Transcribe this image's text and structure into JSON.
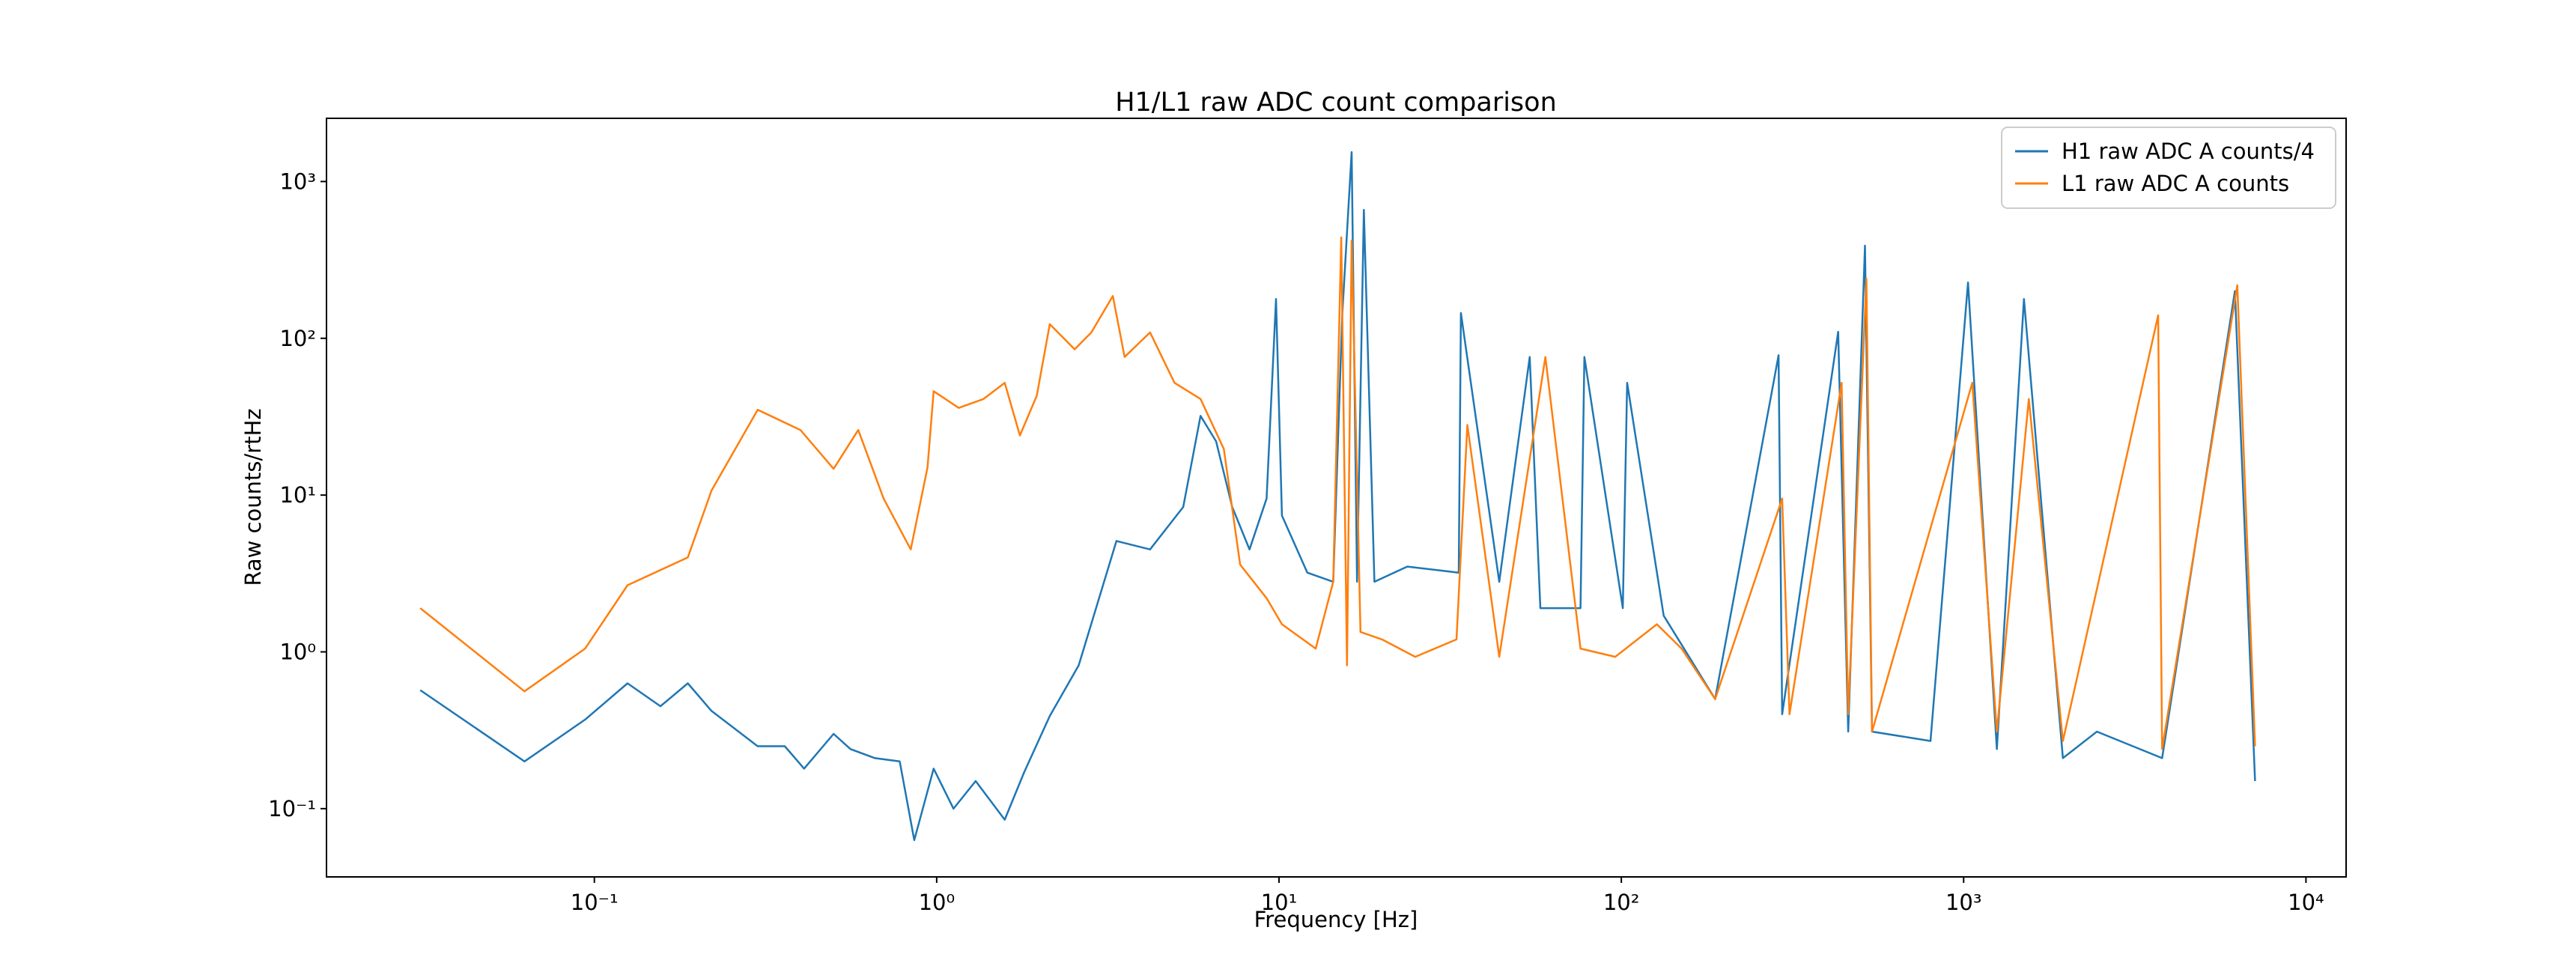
{
  "chart_data": {
    "type": "line",
    "title": "H1/L1 raw ADC count comparison",
    "x_label": "Frequency [Hz]",
    "y_label": "Raw counts/rtHz",
    "xscale": "log",
    "yscale": "log",
    "grid": false,
    "legend": "upper right",
    "xlim": [
      0.0165,
      13100
    ],
    "ylim": [
      0.0367,
      2530
    ],
    "xticks": [
      {
        "value": 0.1,
        "label": "10⁻¹"
      },
      {
        "value": 1,
        "label": "10⁰"
      },
      {
        "value": 10,
        "label": "10¹"
      },
      {
        "value": 100,
        "label": "10²"
      },
      {
        "value": 1000,
        "label": "10³"
      },
      {
        "value": 10000,
        "label": "10⁴"
      }
    ],
    "yticks": [
      {
        "value": 0.1,
        "label": "10⁻¹"
      },
      {
        "value": 1,
        "label": "10⁰"
      },
      {
        "value": 10,
        "label": "10¹"
      },
      {
        "value": 100,
        "label": "10²"
      },
      {
        "value": 1000,
        "label": "10³"
      }
    ],
    "series": [
      {
        "name": "H1 raw ADC A counts/4",
        "color": "#1f77b4",
        "x": [
          0.031,
          0.0625,
          0.094,
          0.125,
          0.156,
          0.1875,
          0.22,
          0.3,
          0.36,
          0.41,
          0.5,
          0.56,
          0.66,
          0.78,
          0.86,
          0.98,
          1.12,
          1.3,
          1.58,
          1.8,
          2.14,
          2.6,
          3.35,
          4.2,
          5.25,
          5.9,
          6.55,
          7.3,
          8.2,
          9.2,
          9.8,
          10.2,
          12.1,
          14.4,
          15.3,
          16.3,
          16.9,
          17.7,
          19,
          23.7,
          33.5,
          34,
          44,
          54,
          58,
          76,
          78,
          101,
          104,
          133,
          188,
          288,
          295,
          430,
          460,
          515,
          540,
          800,
          1030,
          1250,
          1500,
          1950,
          2450,
          3800,
          6200,
          7100
        ],
        "values": [
          0.57,
          0.2,
          0.37,
          0.63,
          0.45,
          0.63,
          0.42,
          0.25,
          0.25,
          0.18,
          0.3,
          0.24,
          0.21,
          0.2,
          0.063,
          0.18,
          0.1,
          0.15,
          0.085,
          0.17,
          0.39,
          0.82,
          5.1,
          4.5,
          8.4,
          32,
          22,
          8.4,
          4.5,
          9.5,
          178,
          7.4,
          3.2,
          2.8,
          140,
          1540,
          2.8,
          660,
          2.8,
          3.5,
          3.2,
          145,
          2.8,
          76,
          1.9,
          1.9,
          76,
          1.9,
          52,
          1.7,
          0.5,
          78,
          0.4,
          110,
          0.31,
          390,
          0.31,
          0.27,
          227,
          0.24,
          178,
          0.21,
          0.31,
          0.21,
          200,
          0.15
        ]
      },
      {
        "name": "L1 raw ADC A counts",
        "color": "#ff7f0e",
        "x": [
          0.031,
          0.0625,
          0.094,
          0.125,
          0.1875,
          0.22,
          0.3,
          0.4,
          0.5,
          0.59,
          0.7,
          0.84,
          0.94,
          0.98,
          1.16,
          1.37,
          1.58,
          1.75,
          1.96,
          2.14,
          2.53,
          2.83,
          3.27,
          3.54,
          4.2,
          4.95,
          5.9,
          6.9,
          7.7,
          9.2,
          10.2,
          12.8,
          14.4,
          15.2,
          15.8,
          16.3,
          17.3,
          20,
          25,
          33,
          35.5,
          44,
          60,
          76,
          96,
          127,
          150,
          188,
          295,
          310,
          440,
          460,
          520,
          540,
          1060,
          1250,
          1550,
          1950,
          3700,
          3800,
          6300,
          7100
        ],
        "values": [
          1.9,
          0.56,
          1.05,
          2.66,
          4.0,
          10.7,
          35,
          26,
          14.7,
          26,
          9.5,
          4.5,
          15,
          46,
          36,
          41,
          52,
          24,
          43,
          123,
          85,
          109,
          186,
          76,
          109,
          52,
          41,
          19.7,
          3.6,
          2.2,
          1.5,
          1.05,
          2.8,
          440,
          0.82,
          420,
          1.34,
          1.2,
          0.93,
          1.2,
          28,
          0.93,
          76,
          1.05,
          0.93,
          1.5,
          1.05,
          0.5,
          9.5,
          0.4,
          52,
          0.4,
          240,
          0.31,
          52,
          0.31,
          41,
          0.27,
          140,
          0.24,
          218,
          0.25
        ]
      }
    ]
  }
}
